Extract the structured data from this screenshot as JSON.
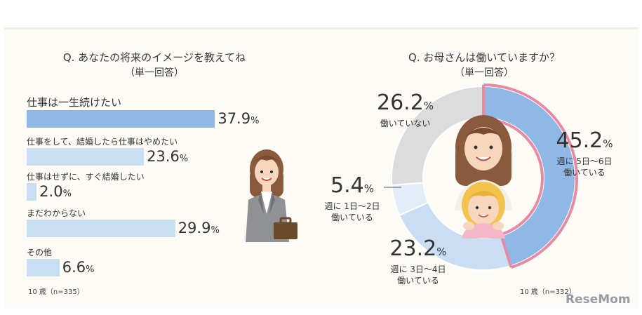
{
  "chart_data": [
    {
      "type": "bar",
      "title": "Q. あなたの将来のイメージを教えてね",
      "subtitle": "（単一回答）",
      "categories": [
        "仕事は一生続けたい",
        "仕事をして、結婚したら仕事はやめたい",
        "仕事はせずに、すぐ結婚したい",
        "まだわからない",
        "その他"
      ],
      "values": [
        37.9,
        23.6,
        2.0,
        29.9,
        6.6
      ],
      "value_labels": [
        "37.9",
        "23.6",
        "2.0",
        "29.9",
        "6.6"
      ],
      "unit": "%",
      "note": "10 歳（n=335）",
      "colors": {
        "highlight": "#8fb8e6",
        "bar": "#c9ddf3"
      }
    },
    {
      "type": "pie",
      "title": "Q. お母さんは働いていますか？",
      "subtitle": "（単一回答）",
      "slices": [
        {
          "label": "週に 5日〜6日 働いている",
          "line1": "週に 5日〜6日",
          "line2": "働いている",
          "value": 45.2,
          "value_label": "45.2",
          "color": "#8fb8e6"
        },
        {
          "label": "週に 3日〜4日 働いている",
          "line1": "週に 3日〜4日",
          "line2": "働いている",
          "value": 23.2,
          "value_label": "23.2",
          "color": "#c9ddf3"
        },
        {
          "label": "週に 1日〜2日 働いている",
          "line1": "週に 1日〜2日",
          "line2": "働いている",
          "value": 5.4,
          "value_label": "5.4",
          "color": "#e2edf9"
        },
        {
          "label": "働いていない",
          "line1": "働いていない",
          "line2": "",
          "value": 26.2,
          "value_label": "26.2",
          "color": "#dcdcdc"
        }
      ],
      "unit": "%",
      "note": "10 歳（n=332）",
      "accent_ring": "#e98aa4"
    }
  ],
  "brand": {
    "logo": "ReseMom"
  }
}
